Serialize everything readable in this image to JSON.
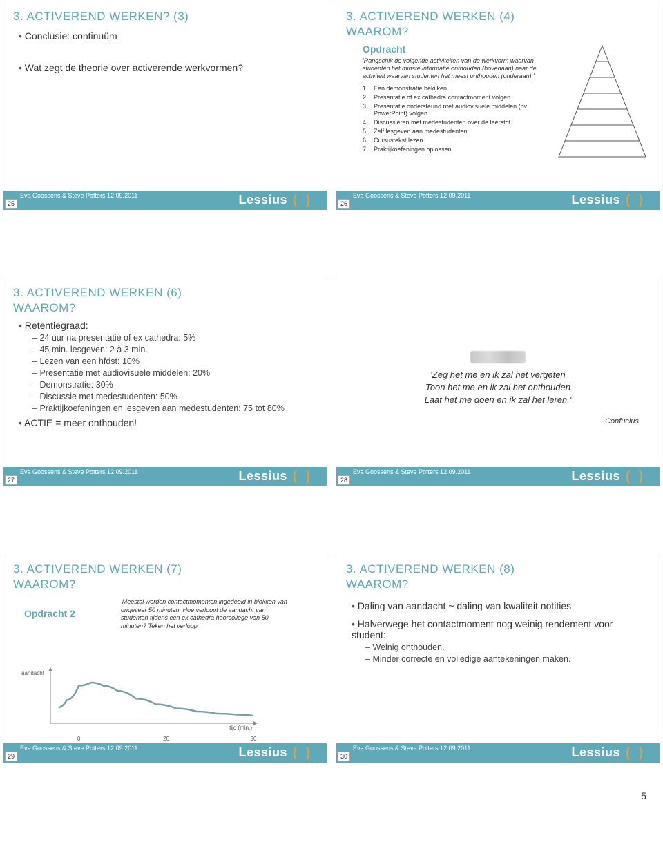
{
  "credit": "Eva Goossens & Steve Potters 12.09.2011",
  "logo": "Lessius",
  "logo_braces": "( )",
  "brand_color": "#5fa9b8",
  "accent_color": "#e89f3a",
  "page_number": "5",
  "slide25": {
    "num": "25",
    "title": "3. ACTIVEREND WERKEN? (3)",
    "b1": "Conclusie: continuüm",
    "b2": "Wat zegt de theorie over activerende werkvormen?"
  },
  "slide26": {
    "num": "26",
    "title1": "3. ACTIVEREND WERKEN (4)",
    "title2": "WAAROM?",
    "opdracht_label": "Opdracht",
    "opdracht_text": "'Rangschik de volgende activiteiten van de werkvorm waarvan studenten het minste informatie onthouden (bovenaan) naar de activiteit waarvan studenten het meest onthouden (onderaan).'",
    "items": [
      {
        "n": "1.",
        "t": "Een demonstratie bekijken."
      },
      {
        "n": "2.",
        "t": "Presentatie of ex cathedra contactmoment volgen."
      },
      {
        "n": "3.",
        "t": "Presentatie ondersteund met audiovisuele middelen (bv. PowerPoint) volgen."
      },
      {
        "n": "4.",
        "t": "Discussiëren met medestudenten over de leerstof."
      },
      {
        "n": "5.",
        "t": "Zelf lesgeven aan medestudenten."
      },
      {
        "n": "6.",
        "t": "Cursustekst lezen."
      },
      {
        "n": "7.",
        "t": "Praktijkoefeningen oplossen."
      }
    ],
    "pyramid": {
      "levels": 7,
      "stroke": "#555555",
      "fill": "none"
    }
  },
  "slide27": {
    "num": "27",
    "title1": "3. ACTIVEREND WERKEN (6)",
    "title2": "WAAROM?",
    "b1": "Retentiegraad:",
    "sub": [
      "24 uur na presentatie of ex cathedra: 5%",
      "45 min. lesgeven: 2 à 3 min.",
      "Lezen van een hfdst: 10%",
      "Presentatie met audiovisuele middelen: 20%",
      "Demonstratie: 30%",
      "Discussie met medestudenten: 50%",
      "Praktijkoefeningen en lesgeven aan medestudenten: 75 tot 80%"
    ],
    "b2": "ACTIE = meer onthouden!"
  },
  "slide28": {
    "num": "28",
    "quote1": "'Zeg het me en ik zal het vergeten",
    "quote2": "Toon het me en ik zal het onthouden",
    "quote3": "Laat het me doen en ik zal het leren.'",
    "author": "Confucius"
  },
  "slide29": {
    "num": "29",
    "title1": "3. ACTIVEREND WERKEN (7)",
    "title2": "WAAROM?",
    "opdracht_label": "Opdracht 2",
    "opdracht_text": "'Meestal worden contactmomenten ingedeeld in blokken van ongeveer 50 minuten. Hoe verloopt de aandacht van studenten tijdens een ex cathedra hoorcollege van 50 minuten? Teken het verloop.'",
    "chart": {
      "type": "line",
      "ylabel": "aandacht",
      "xlabel": "tijd (min.)",
      "xticks": [
        "0",
        "20",
        "50"
      ],
      "xtick_positions_pct": [
        14,
        57,
        100
      ],
      "line_color": "#7a9ea8",
      "line_width": 2.5,
      "axis_color": "#888888",
      "points_pct": [
        [
          4,
          72
        ],
        [
          8,
          58
        ],
        [
          14,
          30
        ],
        [
          20,
          24
        ],
        [
          26,
          30
        ],
        [
          33,
          40
        ],
        [
          42,
          55
        ],
        [
          52,
          66
        ],
        [
          62,
          74
        ],
        [
          72,
          80
        ],
        [
          82,
          84
        ],
        [
          92,
          86
        ],
        [
          100,
          88
        ]
      ]
    }
  },
  "slide30": {
    "num": "30",
    "title1": "3. ACTIVEREND WERKEN (8)",
    "title2": "WAAROM?",
    "b1": "Daling van aandacht ~ daling van kwaliteit notities",
    "b2": "Halverwege het contactmoment nog weinig rendement voor student:",
    "sub": [
      "Weinig onthouden.",
      "Minder correcte en volledige aantekeningen maken."
    ]
  }
}
